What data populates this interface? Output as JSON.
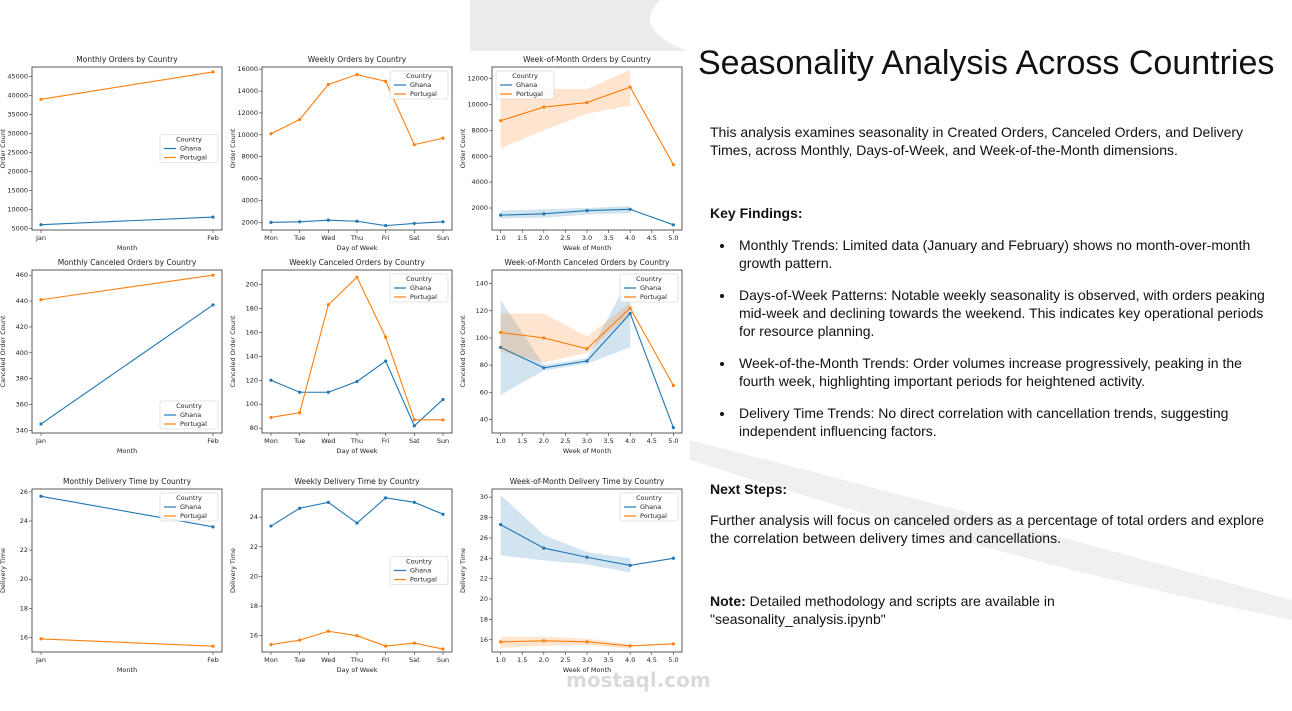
{
  "chart_data": [
    {
      "type": "line",
      "title": "Monthly Orders by Country",
      "xlabel": "Month",
      "ylabel": "Order Count",
      "legend_title": "Country",
      "legend": "center right",
      "categories": [
        "Jan",
        "Feb"
      ],
      "ylim": [
        4600,
        47500
      ],
      "yticks": [
        5000,
        10000,
        15000,
        20000,
        25000,
        30000,
        35000,
        40000,
        45000
      ],
      "series": [
        {
          "name": "Ghana",
          "color": "#1f77b4",
          "values": [
            6000,
            8000
          ]
        },
        {
          "name": "Portugal",
          "color": "#ff7f0e",
          "values": [
            39000,
            46200
          ]
        }
      ]
    },
    {
      "type": "line",
      "title": "Weekly Orders by Country",
      "xlabel": "Day of Week",
      "ylabel": "Order Count",
      "legend_title": "Country",
      "legend": "upper right",
      "categories": [
        "Mon",
        "Tue",
        "Wed",
        "Thu",
        "Fri",
        "Sat",
        "Sun"
      ],
      "ylim": [
        1300,
        16200
      ],
      "yticks": [
        2000,
        4000,
        6000,
        8000,
        10000,
        12000,
        14000,
        16000
      ],
      "series": [
        {
          "name": "Ghana",
          "color": "#1f77b4",
          "values": [
            2000,
            2050,
            2200,
            2100,
            1700,
            1900,
            2050
          ]
        },
        {
          "name": "Portugal",
          "color": "#ff7f0e",
          "values": [
            10100,
            11400,
            14600,
            15500,
            14900,
            9100,
            9700
          ]
        }
      ]
    },
    {
      "type": "line",
      "title": "Week-of-Month Orders by Country",
      "xlabel": "Week of Month",
      "ylabel": "Order Count",
      "legend_title": "Country",
      "legend": "upper left",
      "x": [
        1,
        2,
        3,
        4,
        5
      ],
      "xlim": [
        0.8,
        5.2
      ],
      "xticks": [
        {
          "value": 1,
          "label": "1.0"
        },
        {
          "value": 1.5,
          "label": "1.5"
        },
        {
          "value": 2,
          "label": "2.0"
        },
        {
          "value": 2.5,
          "label": "2.5"
        },
        {
          "value": 3,
          "label": "3.0"
        },
        {
          "value": 3.5,
          "label": "3.5"
        },
        {
          "value": 4,
          "label": "4.0"
        },
        {
          "value": 4.5,
          "label": "4.5"
        },
        {
          "value": 5,
          "label": "5.0"
        }
      ],
      "ylim": [
        300,
        12900
      ],
      "yticks": [
        2000,
        4000,
        6000,
        8000,
        10000,
        12000
      ],
      "series": [
        {
          "name": "Ghana",
          "color": "#1f77b4",
          "values": [
            1450,
            1550,
            1800,
            1900,
            700
          ],
          "lower": [
            1200,
            1250,
            1500,
            1600,
            null
          ],
          "upper": [
            1800,
            1900,
            2000,
            2150,
            null
          ]
        },
        {
          "name": "Portugal",
          "color": "#ff7f0e",
          "values": [
            8750,
            9800,
            10150,
            11350,
            5350
          ],
          "lower": [
            6600,
            8000,
            9300,
            9900,
            null
          ],
          "upper": [
            11000,
            11200,
            11200,
            12700,
            null
          ]
        }
      ]
    },
    {
      "type": "line",
      "title": "Monthly Canceled Orders by Country",
      "xlabel": "Month",
      "ylabel": "Canceled Order Count",
      "legend_title": "Country",
      "legend": "lower right",
      "categories": [
        "Jan",
        "Feb"
      ],
      "ylim": [
        338,
        464
      ],
      "yticks": [
        340,
        360,
        380,
        400,
        420,
        440,
        460
      ],
      "series": [
        {
          "name": "Ghana",
          "color": "#1f77b4",
          "values": [
            345,
            437
          ]
        },
        {
          "name": "Portugal",
          "color": "#ff7f0e",
          "values": [
            441,
            460
          ]
        }
      ]
    },
    {
      "type": "line",
      "title": "Weekly Canceled Orders by Country",
      "xlabel": "Day of Week",
      "ylabel": "Canceled Order Count",
      "legend_title": "Country",
      "legend": "upper right",
      "categories": [
        "Mon",
        "Tue",
        "Wed",
        "Thu",
        "Fri",
        "Sat",
        "Sun"
      ],
      "ylim": [
        76,
        212
      ],
      "yticks": [
        80,
        100,
        120,
        140,
        160,
        180,
        200
      ],
      "series": [
        {
          "name": "Ghana",
          "color": "#1f77b4",
          "values": [
            120,
            110,
            110,
            119,
            136,
            82,
            104
          ]
        },
        {
          "name": "Portugal",
          "color": "#ff7f0e",
          "values": [
            89,
            93,
            183,
            206,
            156,
            87,
            87
          ]
        }
      ]
    },
    {
      "type": "line",
      "title": "Week-of-Month Canceled Orders by Country",
      "xlabel": "Week of Month",
      "ylabel": "Canceled Order Count",
      "legend_title": "Country",
      "legend": "upper right",
      "x": [
        1,
        2,
        3,
        4,
        5
      ],
      "xlim": [
        0.8,
        5.2
      ],
      "xticks": [
        {
          "value": 1,
          "label": "1.0"
        },
        {
          "value": 1.5,
          "label": "1.5"
        },
        {
          "value": 2,
          "label": "2.0"
        },
        {
          "value": 2.5,
          "label": "2.5"
        },
        {
          "value": 3,
          "label": "3.0"
        },
        {
          "value": 3.5,
          "label": "3.5"
        },
        {
          "value": 4,
          "label": "4.0"
        },
        {
          "value": 4.5,
          "label": "4.5"
        },
        {
          "value": 5,
          "label": "5.0"
        }
      ],
      "ylim": [
        30,
        150
      ],
      "yticks": [
        40,
        60,
        80,
        100,
        120,
        140
      ],
      "series": [
        {
          "name": "Ghana",
          "color": "#1f77b4",
          "values": [
            93,
            78,
            83,
            118,
            34
          ],
          "lower": [
            58,
            76,
            81,
            93,
            null
          ],
          "upper": [
            128,
            80,
            85,
            146,
            null
          ]
        },
        {
          "name": "Portugal",
          "color": "#ff7f0e",
          "values": [
            104,
            100,
            92,
            122,
            65
          ],
          "lower": [
            90,
            82,
            89,
            118,
            null
          ],
          "upper": [
            118,
            118,
            101,
            126,
            null
          ]
        }
      ]
    },
    {
      "type": "line",
      "title": "Monthly Delivery Time by Country",
      "xlabel": "Month",
      "ylabel": "Delivery Time",
      "legend_title": "Country",
      "legend": "upper right",
      "categories": [
        "Jan",
        "Feb"
      ],
      "ylim": [
        15,
        26.2
      ],
      "yticks": [
        16,
        18,
        20,
        22,
        24,
        26
      ],
      "series": [
        {
          "name": "Ghana",
          "color": "#1f77b4",
          "values": [
            25.7,
            23.6
          ]
        },
        {
          "name": "Portugal",
          "color": "#ff7f0e",
          "values": [
            15.9,
            15.4
          ]
        }
      ]
    },
    {
      "type": "line",
      "title": "Weekly Delivery Time by Country",
      "xlabel": "Day of Week",
      "ylabel": "Delivery Time",
      "legend_title": "Country",
      "legend": "center right",
      "categories": [
        "Mon",
        "Tue",
        "Wed",
        "Thu",
        "Fri",
        "Sat",
        "Sun"
      ],
      "ylim": [
        14.9,
        25.9
      ],
      "yticks": [
        16,
        18,
        20,
        22,
        24
      ],
      "series": [
        {
          "name": "Ghana",
          "color": "#1f77b4",
          "values": [
            23.4,
            24.6,
            25.0,
            23.6,
            25.3,
            25.0,
            24.2
          ]
        },
        {
          "name": "Portugal",
          "color": "#ff7f0e",
          "values": [
            15.4,
            15.7,
            16.3,
            16.0,
            15.3,
            15.5,
            15.1
          ]
        }
      ]
    },
    {
      "type": "line",
      "title": "Week-of-Month Delivery Time by Country",
      "xlabel": "Week of Month",
      "ylabel": "Delivery Time",
      "legend_title": "Country",
      "legend": "upper right",
      "x": [
        1,
        2,
        3,
        4,
        5
      ],
      "xlim": [
        0.8,
        5.2
      ],
      "xticks": [
        {
          "value": 1,
          "label": "1.0"
        },
        {
          "value": 1.5,
          "label": "1.5"
        },
        {
          "value": 2,
          "label": "2.0"
        },
        {
          "value": 2.5,
          "label": "2.5"
        },
        {
          "value": 3,
          "label": "3.0"
        },
        {
          "value": 3.5,
          "label": "3.5"
        },
        {
          "value": 4,
          "label": "4.0"
        },
        {
          "value": 4.5,
          "label": "4.5"
        },
        {
          "value": 5,
          "label": "5.0"
        }
      ],
      "ylim": [
        14.8,
        30.8
      ],
      "yticks": [
        16,
        18,
        20,
        22,
        24,
        26,
        28,
        30
      ],
      "series": [
        {
          "name": "Ghana",
          "color": "#1f77b4",
          "values": [
            27.3,
            25.0,
            24.1,
            23.3,
            24.0
          ],
          "lower": [
            24.3,
            23.8,
            23.4,
            22.6,
            null
          ],
          "upper": [
            30.2,
            26.3,
            24.6,
            24.0,
            null
          ]
        },
        {
          "name": "Portugal",
          "color": "#ff7f0e",
          "values": [
            15.8,
            15.9,
            15.8,
            15.4,
            15.6
          ],
          "lower": [
            15.2,
            15.4,
            15.5,
            15.1,
            null
          ],
          "upper": [
            16.3,
            16.3,
            16.1,
            15.6,
            null
          ]
        }
      ]
    }
  ],
  "slide": {
    "title": "Seasonality Analysis Across Countries",
    "intro": "This analysis examines seasonality in Created Orders, Canceled Orders, and Delivery Times, across Monthly, Days-of-Week, and Week-of-the-Month dimensions.",
    "findings_heading": "Key Findings:",
    "findings": [
      "Monthly Trends: Limited data (January and February) shows no month-over-month growth pattern.",
      "Days-of-Week Patterns: Notable weekly seasonality is observed, with orders peaking mid-week and declining towards the weekend. This indicates key operational periods for resource planning.",
      "Week-of-the-Month Trends: Order volumes increase progressively, peaking in the fourth week, highlighting important periods for heightened activity.",
      "Delivery Time Trends: No direct correlation with cancellation trends, suggesting independent influencing factors."
    ],
    "next_heading": "Next Steps:",
    "next_text": "Further analysis will focus on canceled orders as a percentage of total orders and explore the correlation between delivery times and cancellations.",
    "note_label": "Note:",
    "note_text": "Detailed methodology and scripts are available in \"seasonality_analysis.ipynb\"",
    "watermark": "mostaql.com"
  }
}
